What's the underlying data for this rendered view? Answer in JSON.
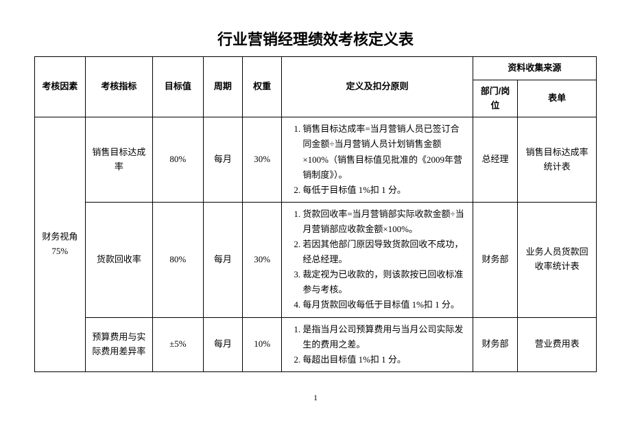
{
  "title": "行业营销经理绩效考核定义表",
  "headers": {
    "factor": "考核因素",
    "metric": "考核指标",
    "target": "目标值",
    "period": "周期",
    "weight": "权重",
    "definition": "定义及扣分原则",
    "source_group": "资料收集来源",
    "dept": "部门/岗位",
    "form": "表单"
  },
  "factor": {
    "name": "财务视角",
    "weight": "75%"
  },
  "rows": [
    {
      "metric": "销售目标达成率",
      "target": "80%",
      "period": "每月",
      "weight": "30%",
      "def1": "销售目标达成率=当月营销人员已签订合同金额÷当月营销人员计划销售金额×100%（销售目标值见批准的《2009年营销制度》）。",
      "def2": "每低于目标值 1%扣 1 分。",
      "dept": "总经理",
      "form": "销售目标达成率统计表"
    },
    {
      "metric": "货款回收率",
      "target": "80%",
      "period": "每月",
      "weight": "30%",
      "def1": "货款回收率=当月营销部实际收款金额÷当月营销部应收款金额×100%。",
      "def2": "若因其他部门原因导致货款回收不成功，经总经理。",
      "def3": "裁定视为已收款的，则该款按已回收标准参与考核。",
      "def4": "每月货款回收每低于目标值 1%扣 1 分。",
      "dept": "财务部",
      "form": "业务人员货款回收率统计表"
    },
    {
      "metric": "预算费用与实际费用差异率",
      "target": "±5%",
      "period": "每月",
      "weight": "10%",
      "def1": "是指当月公司预算费用与当月公司实际发生的费用之差。",
      "def2": "每超出目标值 1%扣 1 分。",
      "dept": "财务部",
      "form": "营业费用表"
    }
  ],
  "page": "1"
}
